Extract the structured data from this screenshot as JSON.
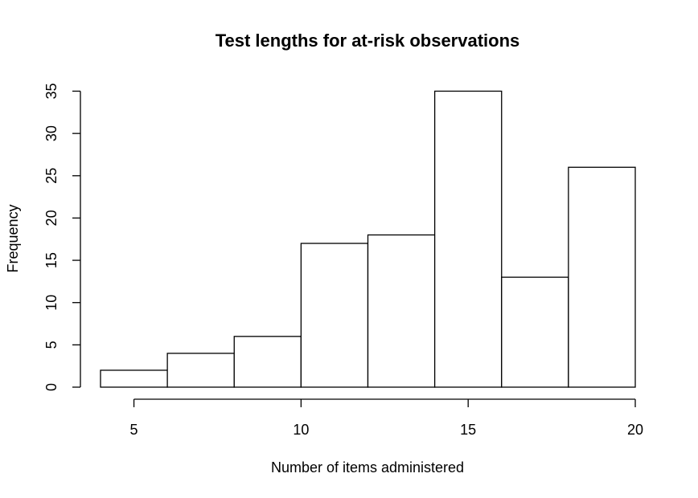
{
  "chart_data": {
    "type": "bar",
    "title": "Test lengths for at-risk observations",
    "xlabel": "Number of items administered",
    "ylabel": "Frequency",
    "bins": [
      {
        "from": 4,
        "to": 6,
        "count": 2
      },
      {
        "from": 6,
        "to": 8,
        "count": 4
      },
      {
        "from": 8,
        "to": 10,
        "count": 6
      },
      {
        "from": 10,
        "to": 12,
        "count": 17
      },
      {
        "from": 12,
        "to": 14,
        "count": 18
      },
      {
        "from": 14,
        "to": 16,
        "count": 35
      },
      {
        "from": 16,
        "to": 18,
        "count": 13
      },
      {
        "from": 18,
        "to": 20,
        "count": 26
      }
    ],
    "xlim": [
      4,
      20
    ],
    "ylim": [
      0,
      35
    ],
    "xticks": [
      5,
      10,
      15,
      20
    ],
    "xtick_labels": [
      "5",
      "10",
      "15",
      "20"
    ],
    "yticks": [
      0,
      5,
      10,
      15,
      20,
      25,
      30,
      35
    ],
    "ytick_labels": [
      "0",
      "5",
      "10",
      "15",
      "20",
      "25",
      "30",
      "35"
    ],
    "grid": false,
    "legend": "none",
    "colors": {
      "bar_fill": "#ffffff",
      "bar_stroke": "#000000"
    }
  }
}
